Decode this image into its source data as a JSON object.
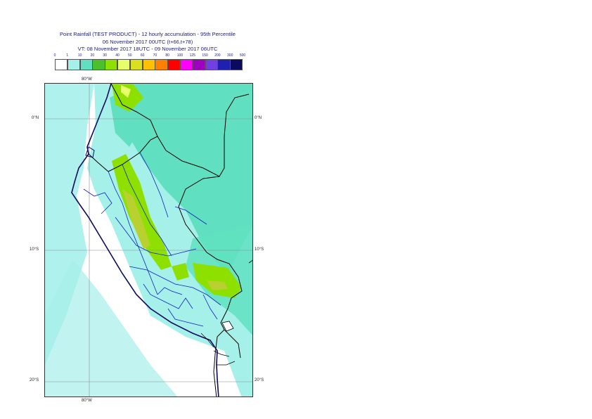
{
  "title": {
    "line1": "Point Rainfall (TEST PRODUCT) - 12 hourly accumulation - 95th Percentile",
    "line2": "06 November 2017 00UTC (t+66,t+78)",
    "line3": "VT: 08 November 2017 18UTC - 09 November 2017 06UTC"
  },
  "legend": {
    "thresholds": [
      "0",
      "1",
      "10",
      "20",
      "30",
      "40",
      "50",
      "60",
      "70",
      "80",
      "100",
      "125",
      "150",
      "200",
      "300",
      "500"
    ],
    "colors": [
      "#ffffff",
      "#a6f0ea",
      "#60e0c0",
      "#4cc02a",
      "#8ee000",
      "#e6ff6a",
      "#d8e020",
      "#ffc000",
      "#ff8000",
      "#ff0000",
      "#ff00ff",
      "#a000c0",
      "#7040e0",
      "#2020b0",
      "#0a0a60"
    ]
  },
  "axes": {
    "lon_top": "80°W",
    "lon_bottom": "80°W",
    "lat_labels": [
      "0°N",
      "10°S",
      "20°S"
    ]
  },
  "map_colors": {
    "ocean_light": "#a6f0ea",
    "land_green": "#60e0c0",
    "yellowgreen": "#8ee000",
    "olive": "#b8d030",
    "coast": "#0a0a60",
    "border": "#000000",
    "regions": "#1020c0",
    "grid": "#8c8c8c"
  }
}
